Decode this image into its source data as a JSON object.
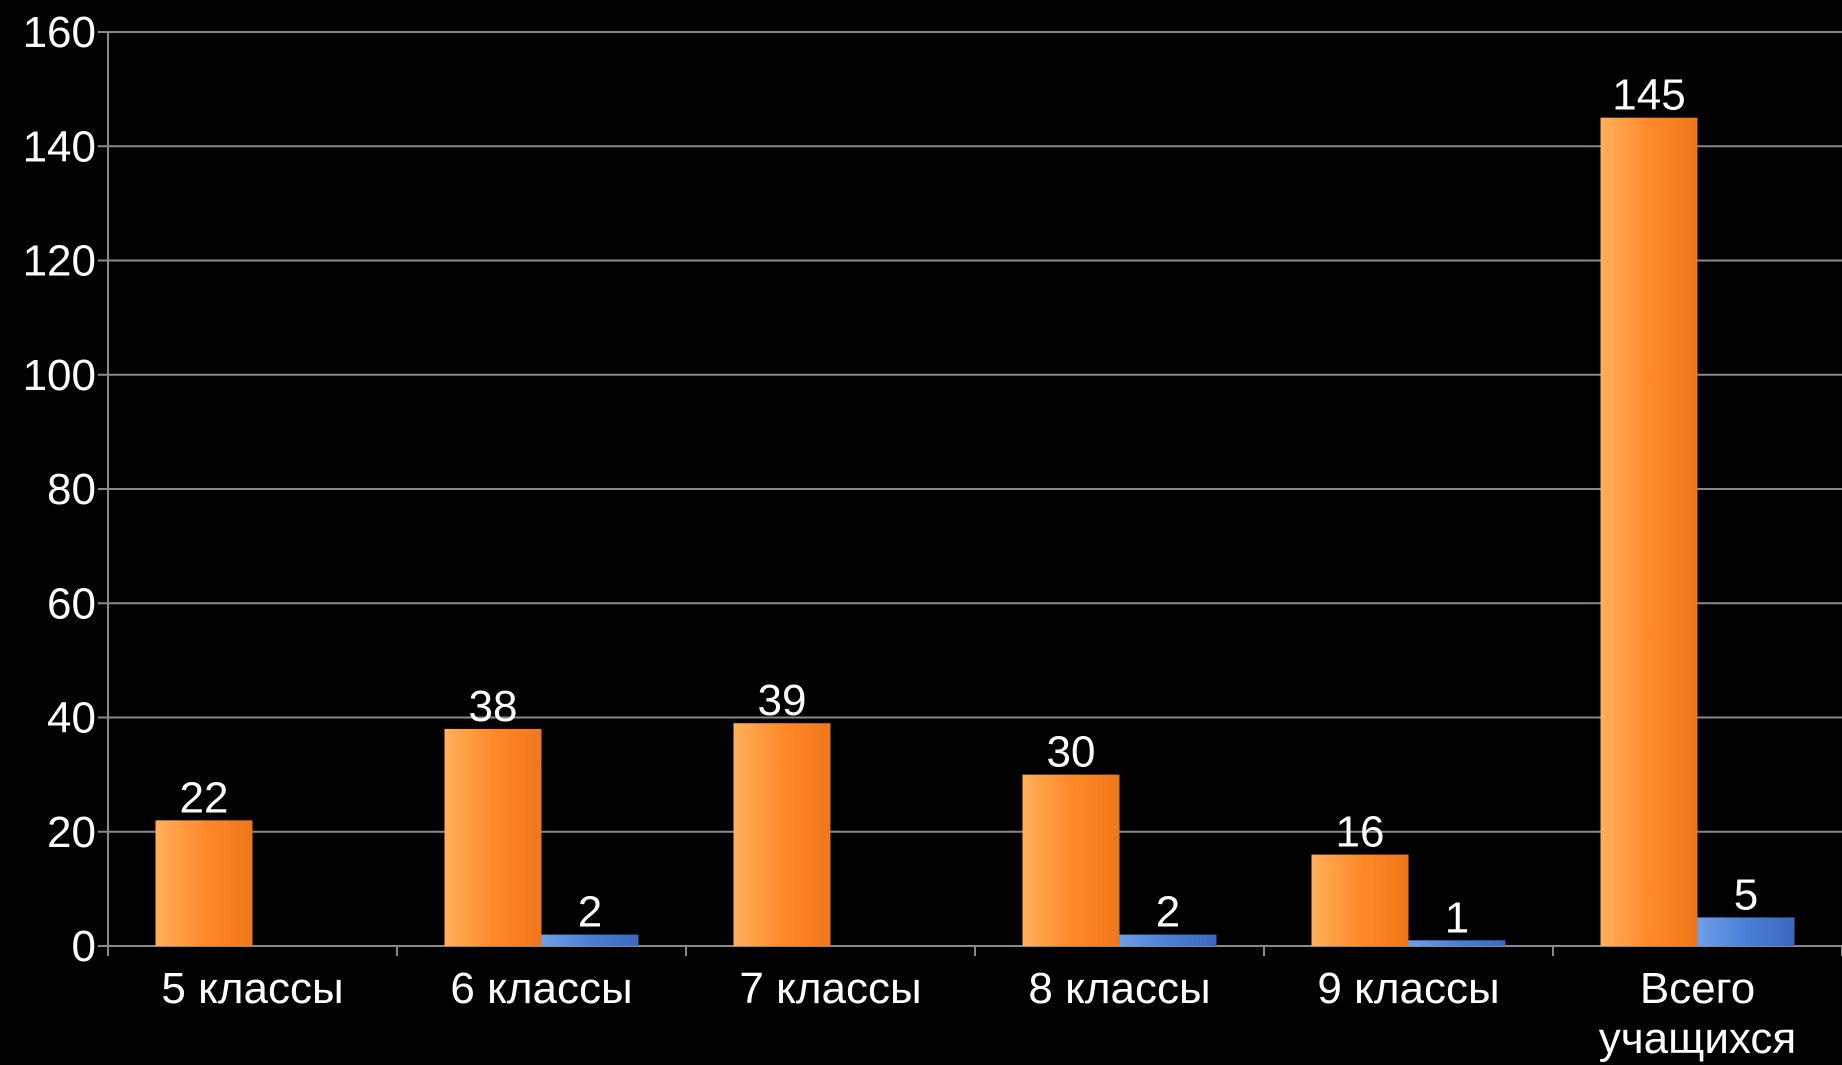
{
  "chart_data": {
    "type": "bar",
    "categories": [
      [
        "5 классы"
      ],
      [
        "6 классы"
      ],
      [
        "7 классы"
      ],
      [
        "8 классы"
      ],
      [
        "9 классы"
      ],
      [
        "Всего",
        "учащихся"
      ]
    ],
    "series": [
      {
        "values": [
          22,
          38,
          39,
          30,
          16,
          145
        ],
        "color": "#ff8a2a"
      },
      {
        "values": [
          null,
          2,
          null,
          2,
          1,
          5
        ],
        "color": "#4a7fd6"
      }
    ],
    "ylim": [
      0,
      160
    ],
    "yticks": [
      0,
      20,
      40,
      60,
      80,
      100,
      120,
      140,
      160
    ],
    "grid": true,
    "legend": "none",
    "title": "",
    "xlabel": "",
    "ylabel": "",
    "colors": {
      "background": "#000000",
      "grid": "#8a8a8a",
      "text": "#ffffff"
    }
  }
}
